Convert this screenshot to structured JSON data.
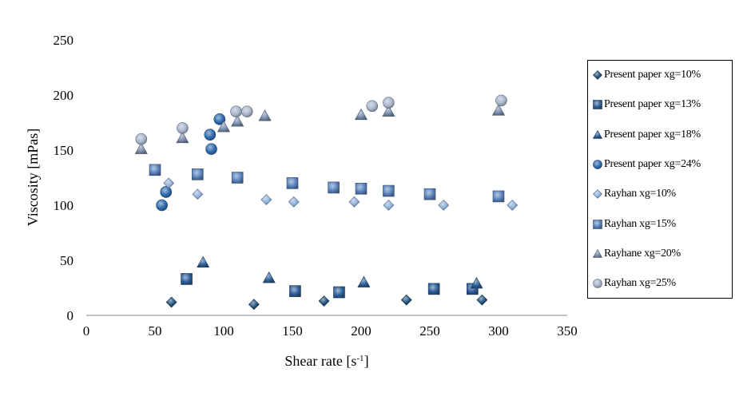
{
  "chart_data": {
    "type": "scatter",
    "title": "",
    "xlabel": "Shear rate [s",
    "xlabel_sup": "-1",
    "xlabel_end": "]",
    "ylabel": "Viscosity [mPas]",
    "xlim": [
      0,
      350
    ],
    "ylim": [
      0,
      250
    ],
    "xticks": [
      0,
      50,
      100,
      150,
      200,
      250,
      300,
      350
    ],
    "yticks": [
      0,
      50,
      100,
      150,
      200,
      250
    ],
    "grid": false,
    "legend_placement": "right",
    "series": [
      {
        "name": "Present paper xg=10%",
        "marker": "diamond",
        "color": "#1f4e7a",
        "points": [
          [
            62,
            12
          ],
          [
            122,
            10
          ],
          [
            173,
            13
          ],
          [
            233,
            14
          ],
          [
            288,
            14
          ]
        ]
      },
      {
        "name": "Present paper xg=13%",
        "marker": "square",
        "color": "#2e5f99",
        "points": [
          [
            73,
            33
          ],
          [
            152,
            22
          ],
          [
            184,
            21
          ],
          [
            253,
            24
          ],
          [
            281,
            24
          ]
        ]
      },
      {
        "name": "Present paper xg=18%",
        "marker": "triangle",
        "color": "#2e5f99",
        "points": [
          [
            85,
            48
          ],
          [
            133,
            34
          ],
          [
            202,
            30
          ],
          [
            284,
            29
          ]
        ]
      },
      {
        "name": "Present paper xg=24%",
        "marker": "circle",
        "color": "#2f6bb0",
        "points": [
          [
            55,
            100
          ],
          [
            58,
            112
          ],
          [
            90,
            164
          ],
          [
            91,
            151
          ],
          [
            97,
            178
          ]
        ]
      },
      {
        "name": "Rayhan xg=10%",
        "marker": "diamond",
        "color": "#8fb0dc",
        "points": [
          [
            60,
            120
          ],
          [
            81,
            110
          ],
          [
            131,
            105
          ],
          [
            151,
            103
          ],
          [
            195,
            103
          ],
          [
            220,
            100
          ],
          [
            260,
            100
          ],
          [
            310,
            100
          ]
        ]
      },
      {
        "name": "Rayhan xg=15%",
        "marker": "square",
        "color": "#5b84bf",
        "points": [
          [
            50,
            132
          ],
          [
            81,
            128
          ],
          [
            110,
            125
          ],
          [
            150,
            120
          ],
          [
            180,
            116
          ],
          [
            200,
            115
          ],
          [
            220,
            113
          ],
          [
            250,
            110
          ],
          [
            300,
            108
          ]
        ]
      },
      {
        "name": "Rayhane xg=20%",
        "marker": "triangle",
        "color": "#7c90b0",
        "points": [
          [
            40,
            151
          ],
          [
            70,
            161
          ],
          [
            100,
            171
          ],
          [
            110,
            176
          ],
          [
            130,
            181
          ],
          [
            200,
            182
          ],
          [
            220,
            185
          ],
          [
            300,
            186
          ]
        ]
      },
      {
        "name": "Rayhan xg=25%",
        "marker": "circle",
        "color": "#a9b6cc",
        "points": [
          [
            40,
            160
          ],
          [
            70,
            170
          ],
          [
            109,
            185
          ],
          [
            117,
            185
          ],
          [
            208,
            190
          ],
          [
            220,
            193
          ],
          [
            302,
            195
          ]
        ]
      }
    ]
  }
}
